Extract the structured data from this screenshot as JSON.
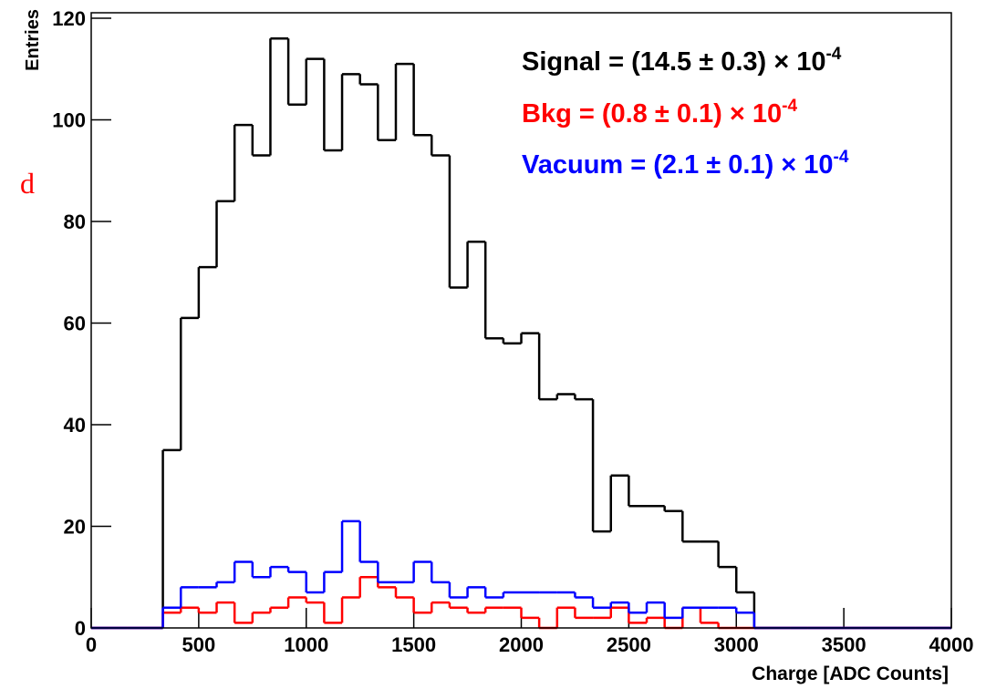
{
  "chart_data": {
    "type": "histogram",
    "xlabel": "Charge [ADC Counts]",
    "ylabel": "Entries",
    "bins": [
      0,
      83.3,
      166.7,
      250,
      333.3,
      416.7,
      500,
      583.3,
      666.7,
      750,
      833.3,
      916.7,
      1000,
      1083.3,
      1166.7,
      1250,
      1333.3,
      1416.7,
      1500,
      1583.3,
      1666.7,
      1750,
      1833.3,
      1916.7,
      2000,
      2083.3,
      2166.7,
      2250,
      2333.3,
      2416.7,
      2500,
      2583.3,
      2666.7,
      2750,
      2833.3,
      2916.7,
      3000,
      3083.3,
      3166.7,
      3250,
      3333.3,
      3416.7,
      3500,
      3583.3,
      3666.7,
      3750,
      3833.3,
      3916.7,
      4000
    ],
    "series": [
      {
        "name": "Signal",
        "color": "#000000",
        "values": [
          0,
          0,
          0,
          0,
          35,
          61,
          71,
          84,
          99,
          93,
          116,
          103,
          112,
          94,
          109,
          107,
          96,
          111,
          97,
          93,
          67,
          76,
          57,
          56,
          58,
          45,
          46,
          45,
          19,
          30,
          24,
          24,
          23,
          17,
          17,
          12,
          7,
          0,
          0,
          0,
          0,
          0,
          0,
          0,
          0,
          0,
          0,
          0
        ]
      },
      {
        "name": "Bkg",
        "color": "#ff0000",
        "values": [
          0,
          0,
          0,
          0,
          3,
          4,
          3,
          5,
          1,
          3,
          4,
          6,
          5,
          1,
          6,
          10,
          8,
          6,
          3,
          5,
          4,
          3,
          4,
          4,
          2,
          0,
          4,
          2,
          2,
          4,
          1,
          2,
          0,
          4,
          1,
          0,
          0,
          0,
          0,
          0,
          0,
          0,
          0,
          0,
          0,
          0,
          0,
          0
        ]
      },
      {
        "name": "Vacuum",
        "color": "#0000ff",
        "values": [
          0,
          0,
          0,
          0,
          4,
          8,
          8,
          9,
          13,
          10,
          12,
          11,
          7,
          11,
          21,
          13,
          9,
          9,
          13,
          9,
          6,
          8,
          6,
          7,
          7,
          7,
          7,
          6,
          4,
          5,
          3,
          5,
          2,
          4,
          4,
          4,
          3,
          0,
          0,
          0,
          0,
          0,
          0,
          0,
          0,
          0,
          0,
          0
        ]
      }
    ],
    "annotations": [
      {
        "text": "Signal = (14.5 ± 0.3) × 10",
        "sup": "-4",
        "color": "#000000"
      },
      {
        "text": "Bkg = (0.8 ± 0.1) × 10",
        "sup": "-4",
        "color": "#ff0000"
      },
      {
        "text": "Vacuum = (2.1 ± 0.1) × 10",
        "sup": "-4",
        "color": "#0000ff"
      },
      {
        "text": "d",
        "color": "#ff0000"
      }
    ],
    "xlim": [
      0,
      4000
    ],
    "xticks": [
      0,
      500,
      1000,
      1500,
      2000,
      2500,
      3000,
      3500,
      4000
    ],
    "ylim": [
      0,
      120
    ],
    "yticks": [
      0,
      20,
      40,
      60,
      80,
      100,
      120
    ]
  }
}
